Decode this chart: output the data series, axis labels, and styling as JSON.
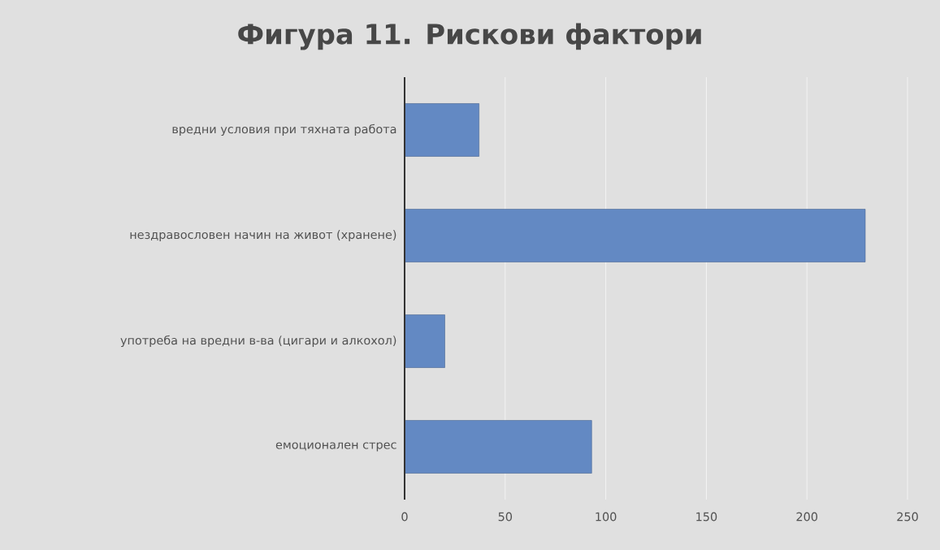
{
  "chart_data": {
    "type": "bar",
    "orientation": "horizontal",
    "title": "Фигура 11. Рискови фактори",
    "categories": [
      "вредни условия при тяхната работа",
      "нездравословен начин на живот (хранене)",
      "употреба на вредни в-ва (цигари и алкохол)",
      "емоционален стрес"
    ],
    "values": [
      37,
      229,
      20,
      93
    ],
    "color": "#6389c3",
    "xlim": [
      0,
      250
    ],
    "xticks": [
      0,
      50,
      100,
      150,
      200,
      250
    ],
    "grid": "x"
  }
}
